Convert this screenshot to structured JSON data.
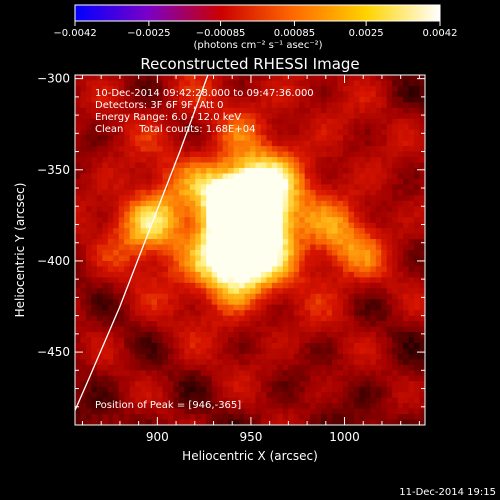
{
  "chart_data": {
    "type": "heatmap",
    "title": "Reconstructed RHESSI Image",
    "xlabel": "Heliocentric X (arcsec)",
    "ylabel": "Heliocentric Y (arcsec)",
    "xlim": [
      856,
      1043
    ],
    "ylim": [
      -490,
      -298
    ],
    "x_ticks": [
      900,
      950,
      1000
    ],
    "x_tick_labels": [
      "900",
      "950",
      "1000"
    ],
    "y_ticks": [
      -300,
      -350,
      -400,
      -450
    ],
    "y_tick_labels": [
      "−300",
      "−350",
      "−400",
      "−450"
    ],
    "colorbar": {
      "range": [
        -0.0042,
        0.0042
      ],
      "ticks": [
        -0.0042,
        -0.0025,
        -0.00085,
        0.00085,
        0.0025,
        0.0042
      ],
      "tick_labels": [
        "−0.0042",
        "−0.0025",
        "−0.00085",
        "0.00085",
        "0.0025",
        "0.0042"
      ],
      "unit_label": "(photons cm⁻² s⁻¹ asec⁻²)",
      "colormap": [
        "#0000ff",
        "#7a00c8",
        "#cc0000",
        "#ff6a00",
        "#ffd400",
        "#ffffff"
      ]
    },
    "annotations": {
      "time": "10-Dec-2014 09:42:28.000 to 09:47:36.000",
      "detectors": "Detectors: 3F 6F 9F, Att 0",
      "energy": "Energy Range: 6.0 - 12.0 keV",
      "clean": "Clean     Total counts: 1.68E+04",
      "peak": "Position of Peak = [946,-365]"
    },
    "peak": [
      946,
      -365
    ],
    "sources": [
      {
        "x": 946,
        "y": -365,
        "amp": 1.0
      },
      {
        "x": 955,
        "y": -380,
        "amp": 0.7
      },
      {
        "x": 940,
        "y": -402,
        "amp": 0.8
      },
      {
        "x": 897,
        "y": -380,
        "amp": 0.5
      },
      {
        "x": 1000,
        "y": -393,
        "amp": 0.35
      }
    ],
    "limb_curve": [
      [
        927,
        -298
      ],
      [
        912,
        -340
      ],
      [
        895,
        -385
      ],
      [
        880,
        -425
      ],
      [
        862,
        -468
      ],
      [
        856,
        -482
      ]
    ]
  },
  "timestamp": "11-Dec-2014 19:15"
}
